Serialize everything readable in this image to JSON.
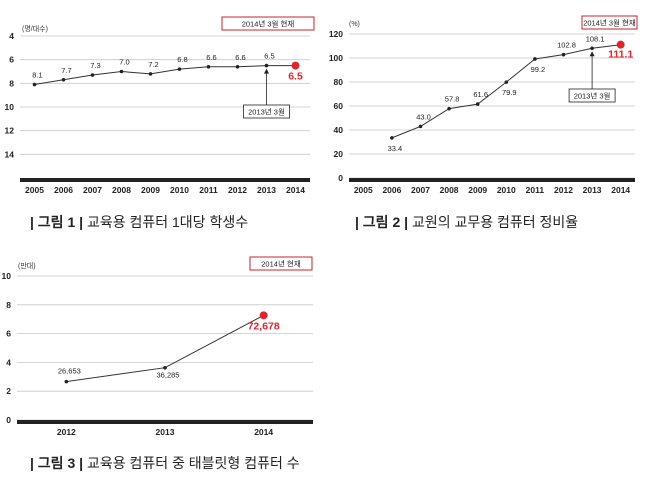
{
  "chart_data": [
    {
      "id": "fig1",
      "type": "line",
      "unit_label": "(명/대수)",
      "badge": "2014년 3월 현재",
      "callout": "2013년 3월",
      "x": [
        "2005",
        "2006",
        "2007",
        "2008",
        "2009",
        "2010",
        "2011",
        "2012",
        "2013",
        "2014"
      ],
      "values": [
        8.1,
        7.7,
        7.3,
        7.0,
        7.2,
        6.8,
        6.6,
        6.6,
        6.5,
        6.5
      ],
      "labels": [
        "8.1",
        "7.7",
        "7.3",
        "7.0",
        "7.2",
        "6.8",
        "6.6",
        "6.6",
        "6.5",
        "6.5"
      ],
      "yticks": [
        "4",
        "6",
        "8",
        "10",
        "12",
        "14"
      ],
      "ylim": [
        4,
        16
      ],
      "inverted_y": true,
      "highlight_last": true,
      "highlight_color": "#e0242c",
      "grid": true,
      "caption": {
        "prefix": "| 그림 1 |",
        "text": "교육용 컴퓨터 1대당 학생수"
      }
    },
    {
      "id": "fig2",
      "type": "line",
      "unit_label": "(%)",
      "badge": "2014년 3월 현재",
      "callout": "2013년 3월",
      "x": [
        "2005",
        "2006",
        "2007",
        "2008",
        "2009",
        "2010",
        "2011",
        "2012",
        "2013",
        "2014"
      ],
      "values": [
        null,
        33.4,
        43.0,
        57.8,
        61.6,
        79.9,
        99.2,
        102.8,
        108.1,
        111.1
      ],
      "labels": [
        "",
        "33.4",
        "43.0",
        "57.8",
        "61.6",
        "79.9",
        "99.2",
        "102.8",
        "108.1",
        "111.1"
      ],
      "yticks": [
        "0",
        "20",
        "40",
        "60",
        "80",
        "100",
        "120"
      ],
      "ylim": [
        0,
        120
      ],
      "inverted_y": false,
      "highlight_last": true,
      "highlight_color": "#e0242c",
      "grid": true,
      "caption": {
        "prefix": "| 그림 2 |",
        "text": "교원의 교무용 컴퓨터 정비율"
      }
    },
    {
      "id": "fig3",
      "type": "line",
      "unit_label": "(만대)",
      "badge": "2014년 현재",
      "x": [
        "2012",
        "2013",
        "2014"
      ],
      "values": [
        2.6653,
        3.6285,
        7.2678
      ],
      "labels": [
        "26,653",
        "36,285",
        "72,678"
      ],
      "yticks": [
        "0",
        "2",
        "4",
        "6",
        "8",
        "10"
      ],
      "ylim": [
        0,
        10
      ],
      "inverted_y": false,
      "highlight_last": true,
      "highlight_color": "#e0242c",
      "grid": true,
      "caption": {
        "prefix": "| 그림 3 |",
        "text": "교육용 컴퓨터 중 태블릿형 컴퓨터 수"
      }
    }
  ]
}
